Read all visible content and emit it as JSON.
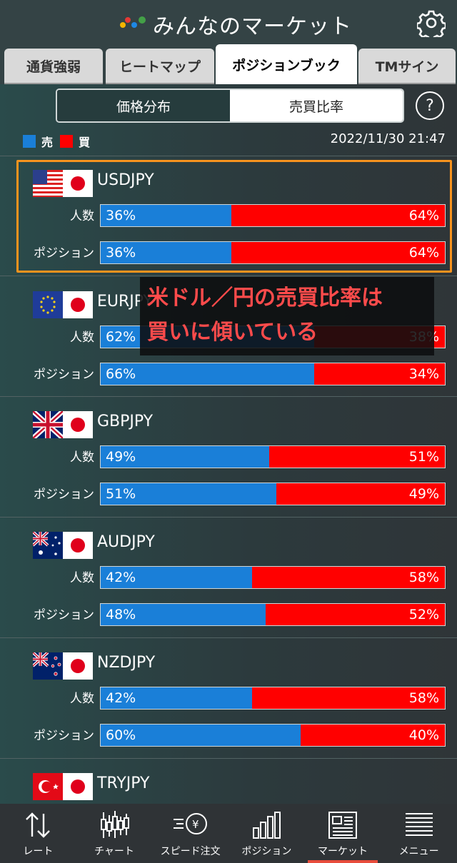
{
  "header": {
    "title": "みんなのマーケット"
  },
  "tabs": [
    {
      "label": "通貨強弱",
      "active": false
    },
    {
      "label": "ヒートマップ",
      "active": false
    },
    {
      "label": "ポジションブック",
      "active": true
    },
    {
      "label": "TMサイン",
      "active": false
    }
  ],
  "segment": {
    "left": "価格分布",
    "right": "売買比率",
    "selected": "売買比率"
  },
  "help_label": "?",
  "legend": {
    "sell_label": "売",
    "buy_label": "買",
    "sell_color": "#1a7fd8",
    "buy_color": "#ff0000"
  },
  "timestamp": "2022/11/30 21:47",
  "row_labels": {
    "people": "人数",
    "position": "ポジション"
  },
  "pairs": [
    {
      "name": "USDJPY",
      "flag": "us-flag-icon",
      "people_sell": "36%",
      "people_buy": "64%",
      "position_sell": "36%",
      "position_buy": "64%"
    },
    {
      "name": "EURJPY",
      "flag": "eu-flag-icon",
      "people_sell": "62%",
      "people_buy": "38%",
      "position_sell": "66%",
      "position_buy": "34%"
    },
    {
      "name": "GBPJPY",
      "flag": "gb-flag-icon",
      "people_sell": "49%",
      "people_buy": "51%",
      "position_sell": "51%",
      "position_buy": "49%"
    },
    {
      "name": "AUDJPY",
      "flag": "au-flag-icon",
      "people_sell": "42%",
      "people_buy": "58%",
      "position_sell": "48%",
      "position_buy": "52%"
    },
    {
      "name": "NZDJPY",
      "flag": "nz-flag-icon",
      "people_sell": "42%",
      "people_buy": "58%",
      "position_sell": "60%",
      "position_buy": "40%"
    },
    {
      "name": "TRYJPY",
      "flag": "tr-flag-icon"
    }
  ],
  "annotation": "米ドル／円の売買比率は\n買いに傾いている",
  "annotation_color": "#ff4b4b",
  "highlight_color": "#f7931e",
  "bottom_nav": [
    {
      "label": "レート",
      "icon": "up-down-arrows-icon",
      "active": false
    },
    {
      "label": "チャート",
      "icon": "candlestick-icon",
      "active": false
    },
    {
      "label": "スピード注文",
      "icon": "speed-order-icon",
      "active": false
    },
    {
      "label": "ポジション",
      "icon": "bar-chart-icon",
      "active": false
    },
    {
      "label": "マーケット",
      "icon": "newspaper-icon",
      "active": true
    },
    {
      "label": "メニュー",
      "icon": "menu-icon",
      "active": false
    }
  ]
}
